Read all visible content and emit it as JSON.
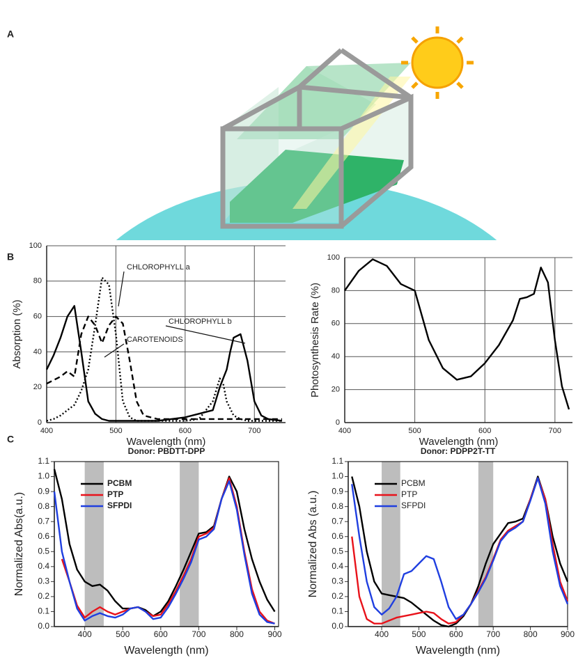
{
  "panel_labels": [
    "A",
    "B",
    "C"
  ],
  "chart_data": [
    {
      "type": "line",
      "xlabel": "Wavelength (nm)",
      "ylabel": "Absorption (%)",
      "x": [
        400,
        410,
        420,
        430,
        440,
        450,
        460,
        470,
        480,
        490,
        500,
        510,
        520,
        530,
        540,
        560,
        600,
        620,
        640,
        650,
        655,
        660,
        665,
        670,
        680,
        690,
        700,
        710,
        720,
        740
      ],
      "series": [
        {
          "name": "CHLOROPHYLL a",
          "color": "#000000",
          "dash": "solid",
          "values": [
            30,
            38,
            48,
            60,
            66,
            40,
            12,
            5,
            2,
            1,
            1,
            1,
            1,
            1,
            1,
            1,
            3,
            5,
            7,
            20,
            25,
            30,
            40,
            48,
            50,
            35,
            12,
            4,
            2,
            1
          ]
        },
        {
          "name": "CHLOROPHYLL b",
          "color": "#000000",
          "dash": "dotted",
          "values": [
            1,
            2,
            4,
            7,
            10,
            18,
            30,
            55,
            82,
            78,
            50,
            12,
            3,
            1,
            1,
            1,
            1,
            2,
            12,
            25,
            22,
            12,
            8,
            4,
            2,
            1,
            1,
            1,
            1,
            1
          ]
        },
        {
          "name": "CAROTENOIDS",
          "color": "#000000",
          "dash": "dashed",
          "values": [
            22,
            24,
            26,
            29,
            26,
            50,
            60,
            55,
            45,
            55,
            60,
            56,
            35,
            12,
            4,
            2,
            2,
            2,
            2,
            2,
            2,
            2,
            2,
            2,
            2,
            2,
            2,
            2,
            2,
            2
          ]
        }
      ],
      "xlim": [
        400,
        745
      ],
      "xticks": [
        400,
        500,
        600,
        700
      ],
      "ylim": [
        0,
        100
      ],
      "yticks": [
        0,
        20,
        40,
        60,
        80,
        100
      ],
      "grid": true
    },
    {
      "type": "line",
      "xlabel": "Wavelength (nm)",
      "ylabel": "Photosynthesis Rate (%)",
      "x": [
        400,
        420,
        440,
        460,
        480,
        500,
        520,
        540,
        560,
        580,
        600,
        620,
        640,
        650,
        660,
        670,
        680,
        690,
        700,
        710,
        720
      ],
      "series": [
        {
          "color": "#000000",
          "dash": "solid",
          "values": [
            80,
            92,
            99,
            95,
            84,
            80,
            50,
            33,
            26,
            28,
            36,
            47,
            62,
            75,
            76,
            78,
            94,
            85,
            50,
            22,
            8
          ]
        }
      ],
      "xlim": [
        400,
        725
      ],
      "xticks": [
        400,
        500,
        600,
        700
      ],
      "ylim": [
        0,
        100
      ],
      "yticks": [
        0,
        20,
        40,
        60,
        80,
        100
      ],
      "grid": true
    },
    {
      "type": "line",
      "title": "Donor: PBDTT-DPP",
      "xlabel": "Wavelength (nm)",
      "ylabel": "Normalized Abs(a.u.)",
      "x": [
        320,
        340,
        360,
        380,
        400,
        420,
        440,
        460,
        480,
        500,
        520,
        540,
        560,
        580,
        600,
        620,
        640,
        660,
        680,
        700,
        720,
        740,
        760,
        780,
        800,
        820,
        840,
        860,
        880,
        900
      ],
      "series": [
        {
          "name": "PCBM",
          "color": "#000000",
          "dash": "solid",
          "values": [
            1.05,
            0.85,
            0.55,
            0.38,
            0.3,
            0.27,
            0.28,
            0.24,
            0.17,
            0.12,
            0.12,
            0.13,
            0.11,
            0.07,
            0.1,
            0.17,
            0.27,
            0.38,
            0.5,
            0.62,
            0.63,
            0.67,
            0.85,
            1.0,
            0.9,
            0.65,
            0.45,
            0.3,
            0.18,
            0.1
          ]
        },
        {
          "name": "PTP",
          "color": "#e8121a",
          "dash": "solid",
          "values": [
            null,
            0.45,
            0.3,
            0.14,
            0.06,
            0.1,
            0.13,
            0.1,
            0.08,
            0.1,
            0.12,
            0.13,
            0.1,
            0.07,
            0.08,
            0.15,
            0.24,
            0.34,
            0.45,
            0.6,
            0.62,
            0.66,
            0.85,
            0.99,
            0.8,
            0.5,
            0.25,
            0.1,
            0.04,
            0.02
          ]
        },
        {
          "name": "SFPDI",
          "color": "#1f3fe0",
          "dash": "solid",
          "values": [
            0.9,
            0.5,
            0.3,
            0.12,
            0.04,
            0.07,
            0.09,
            0.07,
            0.06,
            0.08,
            0.12,
            0.13,
            0.1,
            0.05,
            0.06,
            0.13,
            0.22,
            0.32,
            0.43,
            0.58,
            0.6,
            0.65,
            0.85,
            0.97,
            0.78,
            0.48,
            0.22,
            0.08,
            0.03,
            0.02
          ]
        }
      ],
      "shaded_regions": [
        [
          400,
          450
        ],
        [
          650,
          700
        ]
      ],
      "xlim": [
        320,
        910
      ],
      "xticks": [
        400,
        500,
        600,
        700,
        800,
        900
      ],
      "ylim": [
        0,
        1.1
      ],
      "yticks": [
        {
          "value": 0,
          "label": "0.0"
        },
        0.1,
        0.2,
        0.3,
        0.4,
        0.5,
        0.6,
        0.7,
        0.8,
        0.9,
        {
          "value": 1,
          "label": "1.0"
        },
        1.1
      ],
      "grid": false,
      "legend": "upper-left"
    },
    {
      "type": "line",
      "title": "Donor: PDPP2T-TT",
      "xlabel": "Wavelength (nm)",
      "ylabel": "Normalized Abs (a.u.)",
      "x": [
        320,
        340,
        360,
        380,
        400,
        420,
        440,
        460,
        480,
        500,
        520,
        540,
        560,
        580,
        600,
        620,
        640,
        660,
        680,
        700,
        720,
        740,
        760,
        780,
        800,
        820,
        840,
        860,
        880,
        900
      ],
      "series": [
        {
          "name": "PCBM",
          "color": "#000000",
          "dash": "solid",
          "values": [
            1.0,
            0.8,
            0.5,
            0.3,
            0.22,
            0.21,
            0.2,
            0.19,
            0.16,
            0.12,
            0.08,
            0.04,
            0.01,
            0.0,
            0.02,
            0.07,
            0.15,
            0.27,
            0.42,
            0.55,
            0.62,
            0.69,
            0.7,
            0.72,
            0.85,
            1.0,
            0.85,
            0.6,
            0.42,
            0.3
          ]
        },
        {
          "name": "PTP",
          "color": "#e8121a",
          "dash": "solid",
          "values": [
            0.6,
            0.2,
            0.05,
            0.02,
            0.02,
            0.04,
            0.06,
            0.07,
            0.08,
            0.09,
            0.1,
            0.09,
            0.05,
            0.02,
            0.03,
            0.08,
            0.15,
            0.24,
            0.33,
            0.45,
            0.58,
            0.64,
            0.67,
            0.7,
            0.85,
            0.99,
            0.85,
            0.55,
            0.3,
            0.17
          ]
        },
        {
          "name": "SFPDI",
          "color": "#1f3fe0",
          "dash": "solid",
          "values": [
            0.95,
            0.6,
            0.3,
            0.13,
            0.08,
            0.12,
            0.2,
            0.35,
            0.37,
            0.42,
            0.47,
            0.45,
            0.3,
            0.13,
            0.05,
            0.08,
            0.15,
            0.23,
            0.32,
            0.44,
            0.57,
            0.63,
            0.66,
            0.7,
            0.84,
            0.99,
            0.82,
            0.5,
            0.27,
            0.15
          ]
        }
      ],
      "shaded_regions": [
        [
          400,
          450
        ],
        [
          660,
          700
        ]
      ],
      "xlim": [
        310,
        900
      ],
      "xticks": [
        400,
        500,
        600,
        700,
        800,
        900
      ],
      "ylim": [
        0,
        1.1
      ],
      "yticks": [
        {
          "value": 0,
          "label": "0.0"
        },
        0.1,
        0.2,
        0.3,
        0.4,
        0.5,
        0.6,
        0.7,
        0.8,
        0.9,
        {
          "value": 1,
          "label": "1.0"
        },
        1.1
      ],
      "grid": false,
      "legend": "upper-left"
    }
  ]
}
